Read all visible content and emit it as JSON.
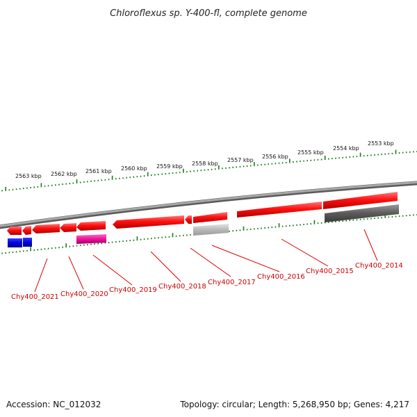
{
  "title": "Chloroflexus sp. Y-400-fl, complete genome",
  "accession": "Accession: NC_012032",
  "summary": "Topology: circular; Length: 5,268,950 bp; Genes: 4,217",
  "colors": {
    "backbone": "#8a8a8a",
    "tick": "#1a7a1a",
    "leader": "#e00000",
    "label": "#cc0000"
  },
  "kbp_labels": [
    "2563 kbp",
    "2562 kbp",
    "2561 kbp",
    "2560 kbp",
    "2559 kbp",
    "2558 kbp",
    "2557 kbp",
    "2556 kbp",
    "2555 kbp",
    "2554 kbp",
    "2553 kbp"
  ],
  "gene_labels": [
    "Chy400_2021",
    "Chy400_2020",
    "Chy400_2019",
    "Chy400_2018",
    "Chy400_2017",
    "Chy400_2016",
    "Chy400_2015",
    "Chy400_2014"
  ]
}
